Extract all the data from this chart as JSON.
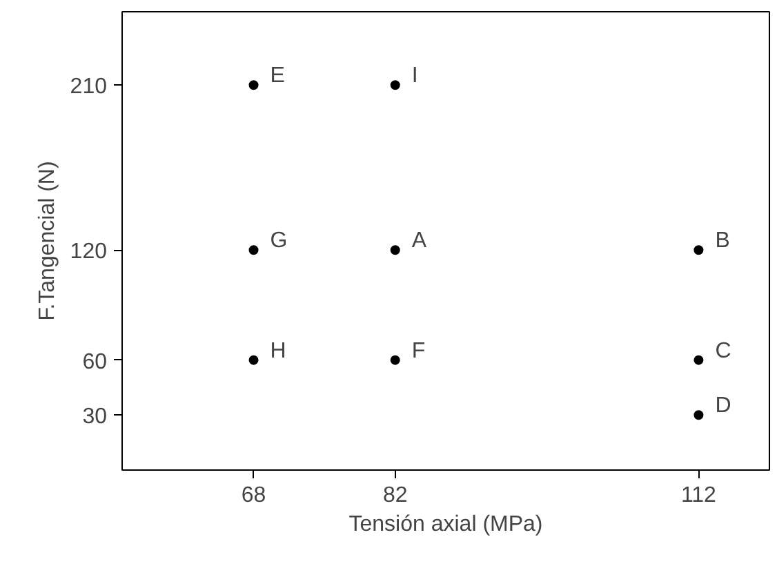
{
  "chart_data": {
    "type": "scatter",
    "xlabel": "Tensión axial (MPa)",
    "ylabel": "F.Tangencial (N)",
    "x": [
      68,
      82,
      68,
      82,
      112,
      68,
      82,
      112,
      112
    ],
    "series": [
      {
        "color": "#000000",
        "values": [
          210,
          210,
          120,
          120,
          120,
          60,
          60,
          60,
          30
        ]
      }
    ],
    "xlim": [
      55,
      119
    ],
    "ylim": [
      0,
      250
    ],
    "xticks": [
      68,
      82,
      112
    ],
    "yticks": [
      30,
      60,
      120,
      210
    ],
    "marker": "circle",
    "annotations": [
      {
        "text": "E",
        "x": 68,
        "y": 210
      },
      {
        "text": "I",
        "x": 82,
        "y": 210
      },
      {
        "text": "G",
        "x": 68,
        "y": 120
      },
      {
        "text": "A",
        "x": 82,
        "y": 120
      },
      {
        "text": "B",
        "x": 112,
        "y": 120
      },
      {
        "text": "H",
        "x": 68,
        "y": 60
      },
      {
        "text": "F",
        "x": 82,
        "y": 60
      },
      {
        "text": "C",
        "x": 112,
        "y": 60
      },
      {
        "text": "D",
        "x": 112,
        "y": 30
      }
    ]
  }
}
